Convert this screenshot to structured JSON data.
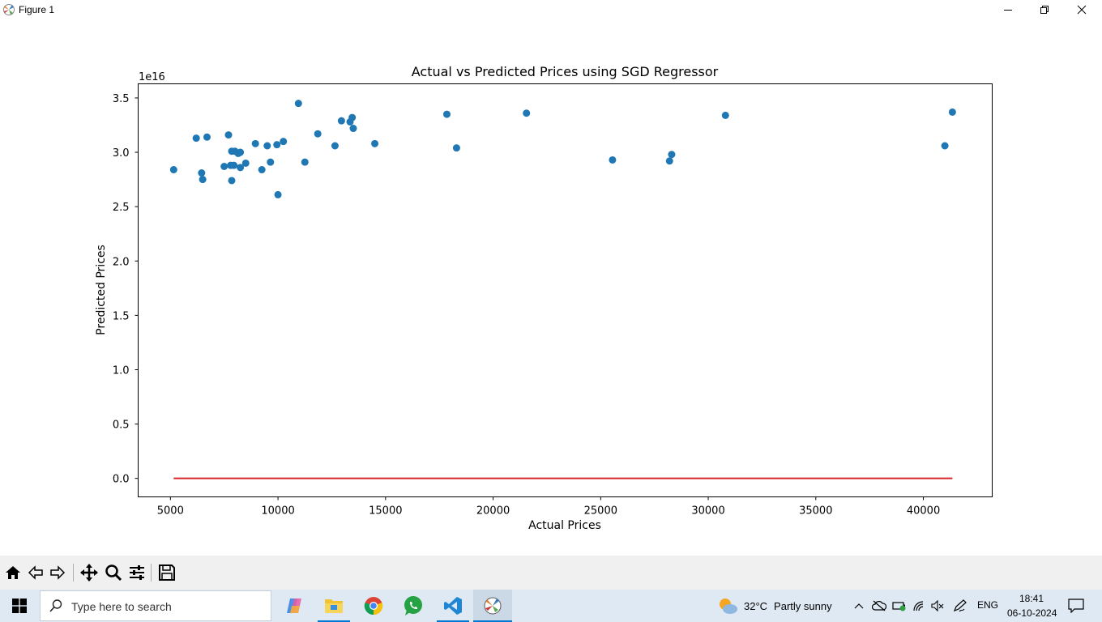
{
  "window": {
    "title": "Figure 1"
  },
  "toolbar": {
    "buttons": [
      "home-icon",
      "back-icon",
      "forward-icon",
      "pan-icon",
      "zoom-icon",
      "configure-icon",
      "save-icon"
    ]
  },
  "chart_data": {
    "type": "scatter",
    "title": "Actual vs Predicted Prices using SGD Regressor",
    "xlabel": "Actual Prices",
    "ylabel": "Predicted Prices",
    "y_offset_label": "1e16",
    "xlim": [
      3500,
      43200
    ],
    "ylim": [
      -0.17,
      3.63
    ],
    "x_ticks": [
      5000,
      10000,
      15000,
      20000,
      25000,
      30000,
      35000,
      40000
    ],
    "x_tick_labels": [
      "5000",
      "10000",
      "15000",
      "20000",
      "25000",
      "30000",
      "35000",
      "40000"
    ],
    "y_ticks": [
      0.0,
      0.5,
      1.0,
      1.5,
      2.0,
      2.5,
      3.0,
      3.5
    ],
    "y_tick_labels": [
      "0.0",
      "0.5",
      "1.0",
      "1.5",
      "2.0",
      "2.5",
      "3.0",
      "3.5"
    ],
    "grid": false,
    "scatter_color": "#1f77b4",
    "line_color": "#d62728",
    "series": [
      {
        "kind": "scatter",
        "points": [
          [
            5150,
            2.84
          ],
          [
            6200,
            3.13
          ],
          [
            6450,
            2.81
          ],
          [
            6500,
            2.75
          ],
          [
            6700,
            3.14
          ],
          [
            7500,
            2.87
          ],
          [
            7700,
            3.16
          ],
          [
            7800,
            2.88
          ],
          [
            7850,
            3.01
          ],
          [
            7850,
            2.74
          ],
          [
            7950,
            2.88
          ],
          [
            8000,
            3.01
          ],
          [
            8150,
            2.99
          ],
          [
            8250,
            3.0
          ],
          [
            8250,
            2.86
          ],
          [
            8500,
            2.9
          ],
          [
            8950,
            3.08
          ],
          [
            9250,
            2.84
          ],
          [
            9500,
            3.06
          ],
          [
            9650,
            2.91
          ],
          [
            9950,
            3.07
          ],
          [
            10000,
            2.61
          ],
          [
            10250,
            3.1
          ],
          [
            10950,
            3.45
          ],
          [
            11250,
            2.91
          ],
          [
            11850,
            3.17
          ],
          [
            12650,
            3.06
          ],
          [
            12950,
            3.29
          ],
          [
            13350,
            3.28
          ],
          [
            13450,
            3.32
          ],
          [
            13500,
            3.22
          ],
          [
            14500,
            3.08
          ],
          [
            17850,
            3.35
          ],
          [
            18300,
            3.04
          ],
          [
            21550,
            3.36
          ],
          [
            25550,
            2.93
          ],
          [
            28200,
            2.92
          ],
          [
            28300,
            2.98
          ],
          [
            30800,
            3.34
          ],
          [
            41000,
            3.06
          ],
          [
            41350,
            3.37
          ]
        ]
      },
      {
        "kind": "line",
        "points": [
          [
            5150,
            0.0
          ],
          [
            41350,
            0.0
          ]
        ]
      }
    ]
  },
  "taskbar": {
    "search_placeholder": "Type here to search",
    "weather_temp": "32°C",
    "weather_text": "Partly sunny",
    "language": "ENG",
    "time": "18:41",
    "date": "06-10-2024"
  }
}
